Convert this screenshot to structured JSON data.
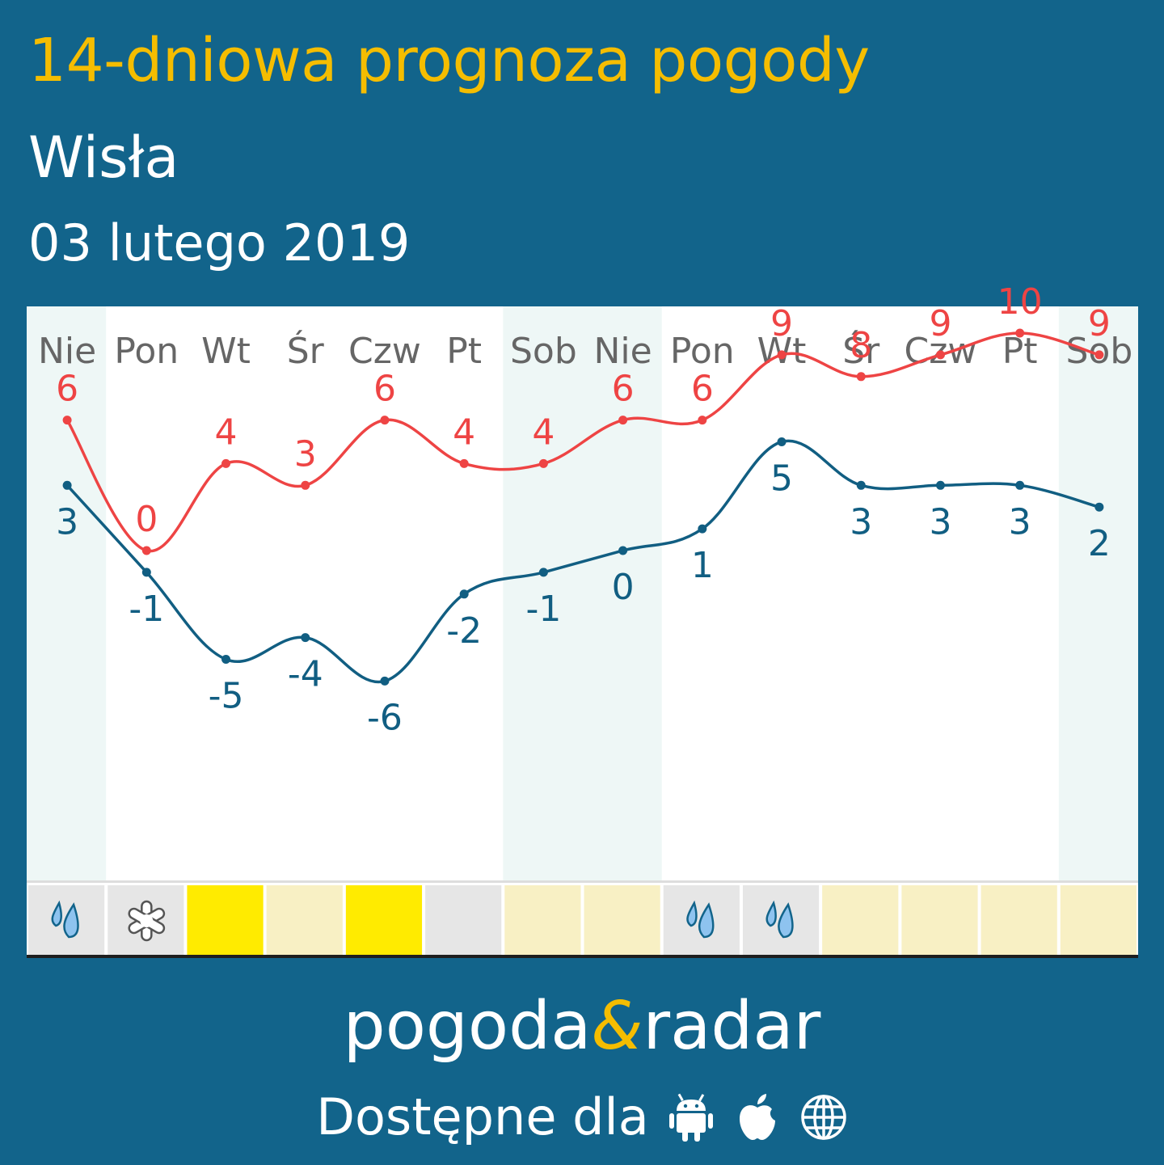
{
  "title": "14-dniowa prognoza pogody",
  "location": "Wisła",
  "date": "03 lutego 2019",
  "brand": {
    "part1": "pogoda",
    "amp": "&",
    "part2": "radar"
  },
  "available_label": "Dostępne dla",
  "platform_icons": [
    "android-icon",
    "apple-icon",
    "globe-icon"
  ],
  "colors": {
    "background": "#12648b",
    "title": "#f5bd00",
    "max_line": "#ee4444",
    "min_line": "#115e82",
    "weekend_band": "#eef7f6",
    "cell_grey": "#e6e6e6",
    "cell_cream": "#f8f0c4",
    "cell_yellow": "#ffeb00"
  },
  "chart_data": {
    "type": "line",
    "categories": [
      "Nie",
      "Pon",
      "Wt",
      "Śr",
      "Czw",
      "Pt",
      "Sob",
      "Nie",
      "Pon",
      "Wt",
      "Śr",
      "Czw",
      "Pt",
      "Sob"
    ],
    "weekend": [
      true,
      false,
      false,
      false,
      false,
      false,
      true,
      true,
      false,
      false,
      false,
      false,
      false,
      true
    ],
    "series": [
      {
        "values": [
          6,
          0,
          4,
          3,
          6,
          4,
          4,
          6,
          6,
          9,
          8,
          9,
          10,
          9
        ],
        "color": "#ee4444"
      },
      {
        "values": [
          3,
          -1,
          -5,
          -4,
          -6,
          -2,
          -1,
          0,
          1,
          5,
          3,
          3,
          3,
          2
        ],
        "color": "#115e82"
      }
    ],
    "daily_icons": [
      "rain-icon",
      "snow-icon",
      "sun",
      "partly-sunny",
      "sun",
      "cloudy",
      "partly-sunny",
      "partly-sunny",
      "rain-icon",
      "rain-icon",
      "partly-sunny",
      "partly-sunny",
      "partly-sunny",
      "partly-sunny"
    ],
    "daily_cell_colors": [
      "#e6e6e6",
      "#e6e6e6",
      "#ffeb00",
      "#f8f0c4",
      "#ffeb00",
      "#e6e6e6",
      "#f8f0c4",
      "#f8f0c4",
      "#e6e6e6",
      "#e6e6e6",
      "#f8f0c4",
      "#f8f0c4",
      "#f8f0c4",
      "#f8f0c4"
    ],
    "grid": false,
    "legend": "none"
  }
}
